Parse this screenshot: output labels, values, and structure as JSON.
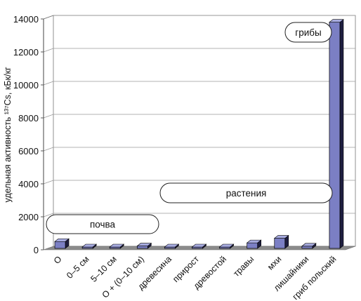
{
  "chart_data": {
    "type": "bar",
    "ylabel": "удельная активность ¹³⁷Cs, кБк/кг",
    "ylim": [
      0,
      14000
    ],
    "yticks": [
      0,
      2000,
      4000,
      6000,
      8000,
      10000,
      12000,
      14000
    ],
    "grid": true,
    "categories": [
      "О",
      "0–5 см",
      "5–10 см",
      "О + (0–10 см)",
      "древесина",
      "прирост",
      "древостой",
      "травы",
      "мхи",
      "лишайники",
      "гриб польский"
    ],
    "values": [
      500,
      30,
      20,
      230,
      20,
      60,
      15,
      420,
      700,
      220,
      13800
    ],
    "annotations": [
      {
        "text": "почва",
        "group": "soil"
      },
      {
        "text": "растения",
        "group": "plants"
      },
      {
        "text": "грибы",
        "group": "fungi"
      }
    ],
    "colors": {
      "bar_front": "#7b7fc4",
      "bar_top": "#a7abe0",
      "bar_side": "#1e1e40",
      "floor": "#8c8c8c",
      "grid": "#9a9a9a"
    }
  }
}
